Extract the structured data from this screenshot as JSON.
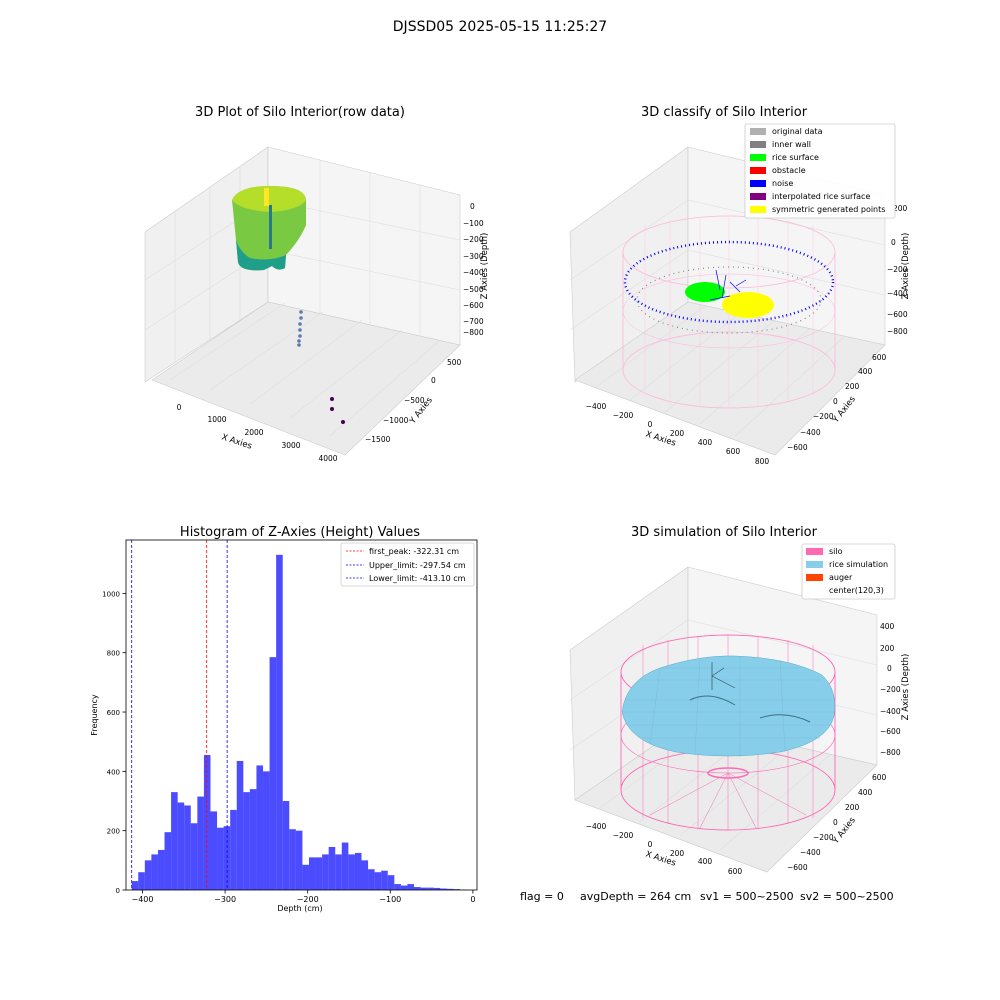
{
  "figure": {
    "suptitle": "DJSSD05 2025-05-15 11:25:27",
    "footer": {
      "flag": "flag = 0",
      "avg_depth": "avgDepth = 264 cm",
      "sv1": "sv1 = 500~2500",
      "sv2": "sv2 = 500~2500"
    }
  },
  "panels": {
    "raw": {
      "title": "3D Plot of Silo Interior(row data)",
      "xlabel": "X Axies",
      "ylabel": "Y Axies",
      "zlabel": "Z Axies (Depth)",
      "xticks": [
        "0",
        "1000",
        "2000",
        "3000",
        "4000"
      ],
      "yticks": [
        "500",
        "0",
        "−500",
        "−1000",
        "−1500"
      ],
      "zticks": [
        "0",
        "−100",
        "−200",
        "−300",
        "−400",
        "−500",
        "−600",
        "−700",
        "−800"
      ]
    },
    "classify": {
      "title": "3D classify of Silo Interior",
      "xlabel": "X Axies",
      "ylabel": "Y Axies",
      "zlabel": "Z Axies (Depth)",
      "xticks": [
        "−400",
        "−200",
        "0",
        "200",
        "400",
        "600",
        "800"
      ],
      "yticks": [
        "600",
        "400",
        "200",
        "0",
        "−200",
        "−400",
        "−600"
      ],
      "zticks": [
        "200",
        "0",
        "−200",
        "−400",
        "−600",
        "−800"
      ],
      "legend": [
        {
          "label": "original data",
          "color": "#b0b0b0"
        },
        {
          "label": "inner wall",
          "color": "#808080"
        },
        {
          "label": "rice surface",
          "color": "#00ff00"
        },
        {
          "label": "obstacle",
          "color": "#ff0000"
        },
        {
          "label": "noise",
          "color": "#0000ff"
        },
        {
          "label": "interpolated rice surface",
          "color": "#800080"
        },
        {
          "label": "symmetric generated points",
          "color": "#ffff00"
        }
      ]
    },
    "simulation": {
      "title": "3D simulation of Silo Interior",
      "xlabel": "X Axies",
      "ylabel": "Y Axies",
      "zlabel": "Z Axies (Depth)",
      "xticks": [
        "−400",
        "−200",
        "0",
        "200",
        "400",
        "600"
      ],
      "yticks": [
        "600",
        "400",
        "200",
        "0",
        "−200",
        "−400",
        "−600"
      ],
      "zticks": [
        "400",
        "200",
        "0",
        "−200",
        "−400",
        "−600",
        "−800"
      ],
      "legend": [
        {
          "label": "silo",
          "color": "#ff69b4"
        },
        {
          "label": "rice simulation",
          "color": "#87ceeb"
        },
        {
          "label": "auger",
          "color": "#ff4500"
        },
        {
          "label": "center(120,3)",
          "color": "#ffffff"
        }
      ]
    }
  },
  "chart_data": {
    "type": "bar",
    "title": "Histogram of Z-Axies (Height) Values",
    "xlabel": "Depth (cm)",
    "ylabel": "Frequency",
    "xlim": [
      -420,
      5
    ],
    "ylim": [
      0,
      1180
    ],
    "xticks": [
      -400,
      -300,
      -200,
      -100,
      0
    ],
    "xtick_labels": [
      "−400",
      "−300",
      "−200",
      "−100",
      "0"
    ],
    "yticks": [
      0,
      200,
      400,
      600,
      800,
      1000
    ],
    "bin_start": -413.1,
    "bin_width": 7.95,
    "color": "#0000ff",
    "values": [
      30,
      60,
      100,
      120,
      135,
      195,
      330,
      295,
      285,
      225,
      315,
      455,
      265,
      210,
      215,
      270,
      435,
      330,
      340,
      420,
      400,
      785,
      1130,
      300,
      205,
      200,
      85,
      110,
      110,
      120,
      145,
      120,
      160,
      120,
      125,
      100,
      70,
      60,
      65,
      50,
      20,
      15,
      20,
      10,
      8,
      8,
      7,
      5,
      4,
      3,
      1
    ],
    "vlines": [
      {
        "label": "first_peak: -322.31 cm",
        "x": -322.31,
        "color": "#ff0000"
      },
      {
        "label": "Upper_limit: -297.54 cm",
        "x": -297.54,
        "color": "#0000ff"
      },
      {
        "label": "Lower_limit: -413.10 cm",
        "x": -413.1,
        "color": "#0000ff"
      }
    ],
    "legend": "top-right"
  }
}
